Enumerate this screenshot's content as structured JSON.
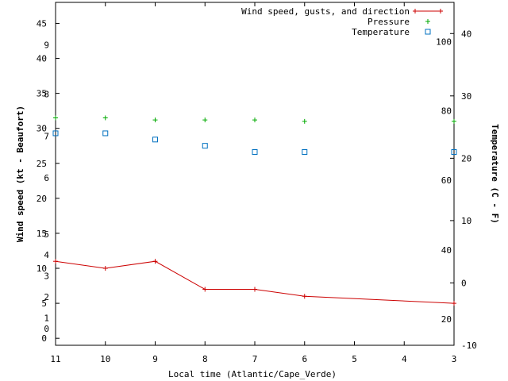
{
  "chart_data": {
    "type": "line",
    "xlabel": "Local time (Atlantic/Cape_Verde)",
    "ylabel": "Wind speed (kt - Beaufort)",
    "y2label": "Temperature (C - F)",
    "x": [
      11,
      10,
      9,
      8,
      7,
      6,
      3
    ],
    "x_ticks": [
      "11",
      "10",
      "9",
      "8",
      "7",
      "6",
      "5",
      "4",
      "3"
    ],
    "x_tick_values": [
      11,
      10,
      9,
      8,
      7,
      6,
      5,
      4,
      3
    ],
    "xlim": [
      11,
      3
    ],
    "ylim": [
      -1,
      48
    ],
    "y2lim": [
      -10,
      45
    ],
    "wind_ticks": [
      "0",
      "5",
      "10",
      "15",
      "20",
      "25",
      "30",
      "35",
      "40",
      "45"
    ],
    "wind_tick_values": [
      0,
      5,
      10,
      15,
      20,
      25,
      30,
      35,
      40,
      45
    ],
    "beaufort_ticks": [
      "0",
      "1",
      "2",
      "3",
      "4",
      "5",
      "6",
      "7",
      "8",
      "9"
    ],
    "beaufort_tick_values": [
      0.5,
      2,
      5,
      8,
      11,
      14,
      22,
      28,
      34,
      41
    ],
    "celsius_ticks": [
      "-10",
      "0",
      "10",
      "20",
      "30",
      "40"
    ],
    "celsius_tick_values": [
      -10,
      0,
      10,
      20,
      30,
      40
    ],
    "fahrenheit_ticks": [
      "20",
      "40",
      "60",
      "80",
      "100"
    ],
    "fahrenheit_tick_values": [
      -6.7,
      4.4,
      15.6,
      26.7,
      37.8
    ],
    "series": [
      {
        "name": "Wind speed, gusts, and direction",
        "axis": "wind",
        "color": "#cc0000",
        "style": "line-plus",
        "x": [
          11,
          10,
          9,
          8,
          7,
          6,
          3
        ],
        "values": [
          11,
          10,
          11,
          7,
          7,
          6,
          5
        ]
      },
      {
        "name": "Pressure",
        "axis": "wind",
        "color": "#00aa00",
        "style": "plus",
        "x": [
          11,
          10,
          9,
          8,
          7,
          6,
          3
        ],
        "values": [
          31.5,
          31.5,
          31.2,
          31.2,
          31.2,
          31,
          31
        ]
      },
      {
        "name": "Temperature",
        "axis": "temperature",
        "color": "#0070c0",
        "style": "square",
        "x": [
          11,
          10,
          9,
          8,
          7,
          6,
          3
        ],
        "values": [
          24,
          24,
          23,
          22,
          21,
          21,
          21
        ]
      }
    ],
    "legend": {
      "position": "top-right",
      "labels": [
        "Wind speed, gusts, and direction",
        "Pressure",
        "Temperature"
      ]
    }
  }
}
